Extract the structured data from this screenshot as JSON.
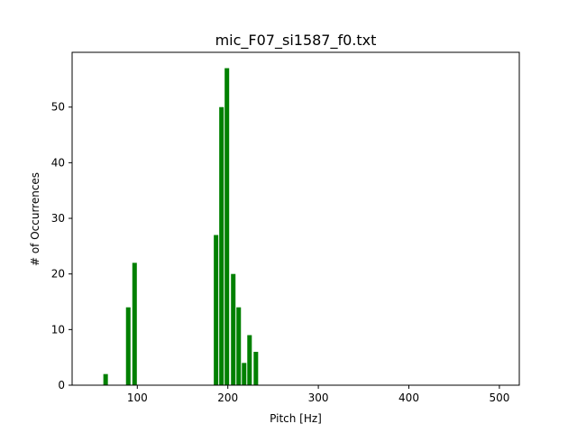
{
  "chart_data": {
    "type": "bar",
    "title": "mic_F07_si1587_f0.txt",
    "xlabel": "Pitch [Hz]",
    "ylabel": "# of Occurrences",
    "xlim": [
      28,
      522
    ],
    "ylim": [
      0,
      59.85
    ],
    "xticks": [
      100,
      200,
      300,
      400,
      500
    ],
    "yticks": [
      0,
      10,
      20,
      30,
      40,
      50
    ],
    "bar_width": 5,
    "bar_color": "#008000",
    "grid": false,
    "bars": [
      {
        "x": 65,
        "value": 2
      },
      {
        "x": 90,
        "value": 14
      },
      {
        "x": 97,
        "value": 22
      },
      {
        "x": 187,
        "value": 27
      },
      {
        "x": 193,
        "value": 50
      },
      {
        "x": 199,
        "value": 57
      },
      {
        "x": 206,
        "value": 20
      },
      {
        "x": 212,
        "value": 14
      },
      {
        "x": 218,
        "value": 4
      },
      {
        "x": 224,
        "value": 9
      },
      {
        "x": 231,
        "value": 6
      }
    ]
  }
}
